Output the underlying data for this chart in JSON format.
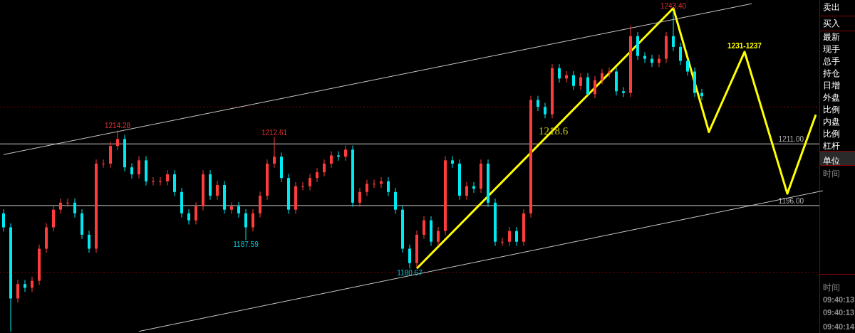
{
  "chart_data": {
    "type": "candlestick",
    "categories": [
      null,
      null,
      null,
      null,
      null,
      null,
      null,
      null,
      null,
      null,
      null,
      null,
      null,
      null,
      null,
      null,
      null,
      null,
      null,
      null,
      null,
      null,
      null,
      null,
      null,
      null,
      null,
      null,
      null,
      null,
      null,
      null,
      null,
      null,
      null,
      null,
      null,
      null,
      null,
      null,
      null,
      null,
      null,
      null,
      null,
      null,
      null,
      null,
      null,
      null,
      null,
      null,
      null,
      null,
      null,
      null,
      null,
      null,
      null,
      null,
      null,
      null,
      null,
      null,
      null,
      null,
      null,
      null,
      null,
      null,
      null,
      null,
      null,
      null,
      null,
      null,
      null,
      null,
      null,
      null,
      null,
      null,
      null,
      null,
      null,
      null,
      null,
      null,
      null,
      null,
      null,
      null,
      null,
      null,
      null,
      null,
      null,
      null,
      null,
      null,
      null,
      null,
      null,
      null,
      null,
      null,
      null,
      null,
      null,
      null,
      null,
      null,
      null,
      null,
      null,
      null,
      null,
      null,
      null,
      null
    ],
    "ohlc": [
      [
        1194.1,
        1195.1,
        1189.7,
        1190.7
      ],
      [
        1190.7,
        1191.7,
        1165.3,
        1173.4
      ],
      [
        1173.4,
        1177.9,
        1172.4,
        1176.9
      ],
      [
        1176.9,
        1177.9,
        1175.0,
        1176.0
      ],
      [
        1176.0,
        1178.7,
        1175.0,
        1177.7
      ],
      [
        1177.7,
        1186.5,
        1176.7,
        1185.5
      ],
      [
        1185.5,
        1191.7,
        1184.5,
        1190.7
      ],
      [
        1190.7,
        1196.0,
        1189.7,
        1195.0
      ],
      [
        1195.0,
        1197.7,
        1194.0,
        1196.7
      ],
      [
        1196.7,
        1197.7,
        1195.7,
        1196.7
      ],
      [
        1196.7,
        1197.7,
        1193.1,
        1194.1
      ],
      [
        1194.1,
        1195.1,
        1187.9,
        1188.9
      ],
      [
        1188.9,
        1189.9,
        1184.5,
        1185.5
      ],
      [
        1185.5,
        1207.2,
        1184.5,
        1206.2
      ],
      [
        1206.2,
        1207.2,
        1205.2,
        1206.2
      ],
      [
        1206.2,
        1211.5,
        1205.2,
        1210.5
      ],
      [
        1210.5,
        1214.28,
        1209.5,
        1212.2
      ],
      [
        1212.2,
        1213.2,
        1204.3,
        1205.3
      ],
      [
        1205.3,
        1206.3,
        1202.6,
        1203.6
      ],
      [
        1203.6,
        1208.0,
        1202.6,
        1207.0
      ],
      [
        1207.0,
        1208.0,
        1200.9,
        1201.9
      ],
      [
        1201.9,
        1202.9,
        1200.9,
        1201.9
      ],
      [
        1201.9,
        1202.9,
        1200.9,
        1201.9
      ],
      [
        1201.9,
        1204.6,
        1200.9,
        1203.6
      ],
      [
        1203.6,
        1204.6,
        1198.3,
        1199.3
      ],
      [
        1199.3,
        1200.3,
        1193.1,
        1194.1
      ],
      [
        1194.1,
        1195.1,
        1191.4,
        1192.4
      ],
      [
        1192.4,
        1196.8,
        1191.4,
        1195.8
      ],
      [
        1195.8,
        1204.6,
        1194.8,
        1203.6
      ],
      [
        1203.6,
        1204.6,
        1197.4,
        1198.4
      ],
      [
        1198.4,
        1202.0,
        1197.4,
        1201.0
      ],
      [
        1201.0,
        1202.0,
        1194.0,
        1195.0
      ],
      [
        1195.0,
        1196.8,
        1194.0,
        1195.8
      ],
      [
        1195.8,
        1196.8,
        1193.1,
        1194.1
      ],
      [
        1194.1,
        1195.1,
        1187.59,
        1190.7
      ],
      [
        1190.7,
        1195.1,
        1189.7,
        1194.1
      ],
      [
        1194.1,
        1199.4,
        1193.1,
        1198.4
      ],
      [
        1198.4,
        1207.2,
        1197.4,
        1206.2
      ],
      [
        1206.2,
        1212.61,
        1205.2,
        1207.9
      ],
      [
        1207.9,
        1208.9,
        1201.7,
        1202.7
      ],
      [
        1202.7,
        1203.7,
        1194.0,
        1195.0
      ],
      [
        1195.0,
        1201.7,
        1194.0,
        1200.7
      ],
      [
        1200.7,
        1201.7,
        1199.7,
        1200.7
      ],
      [
        1200.7,
        1203.7,
        1199.7,
        1202.7
      ],
      [
        1202.7,
        1205.1,
        1201.7,
        1204.1
      ],
      [
        1204.1,
        1207.2,
        1203.1,
        1206.2
      ],
      [
        1206.2,
        1209.2,
        1205.2,
        1208.2
      ],
      [
        1208.2,
        1209.2,
        1206.9,
        1207.9
      ],
      [
        1207.9,
        1210.6,
        1206.9,
        1209.6
      ],
      [
        1209.6,
        1210.6,
        1195.7,
        1196.7
      ],
      [
        1196.7,
        1200.3,
        1195.7,
        1199.3
      ],
      [
        1199.3,
        1202.3,
        1198.3,
        1201.3
      ],
      [
        1201.3,
        1202.3,
        1200.3,
        1201.3
      ],
      [
        1201.3,
        1202.9,
        1200.3,
        1201.9
      ],
      [
        1201.9,
        1202.9,
        1198.3,
        1199.3
      ],
      [
        1199.3,
        1200.3,
        1194.0,
        1195.0
      ],
      [
        1195.0,
        1196.0,
        1184.5,
        1185.5
      ],
      [
        1185.5,
        1186.5,
        1180.67,
        1182.0
      ],
      [
        1182.0,
        1189.9,
        1181.0,
        1188.9
      ],
      [
        1188.9,
        1193.4,
        1187.9,
        1192.4
      ],
      [
        1192.4,
        1193.4,
        1186.2,
        1187.2
      ],
      [
        1187.2,
        1190.8,
        1186.2,
        1189.8
      ],
      [
        1189.8,
        1208.0,
        1188.8,
        1207.0
      ],
      [
        1207.0,
        1208.0,
        1205.2,
        1206.2
      ],
      [
        1206.2,
        1207.2,
        1197.4,
        1198.4
      ],
      [
        1198.4,
        1201.7,
        1197.4,
        1200.7
      ],
      [
        1200.7,
        1201.7,
        1199.1,
        1200.1
      ],
      [
        1200.1,
        1207.2,
        1199.1,
        1206.2
      ],
      [
        1206.2,
        1207.2,
        1195.7,
        1196.7
      ],
      [
        1196.7,
        1197.7,
        1186.2,
        1187.2
      ],
      [
        1187.2,
        1188.2,
        1186.2,
        1187.2
      ],
      [
        1187.2,
        1190.8,
        1186.2,
        1189.8
      ],
      [
        1189.8,
        1190.8,
        1186.2,
        1187.2
      ],
      [
        1187.2,
        1195.1,
        1186.2,
        1194.1
      ],
      [
        1194.1,
        1222.7,
        1193.1,
        1221.7
      ],
      [
        1221.7,
        1222.7,
        1219.0,
        1220.0
      ],
      [
        1220.0,
        1221.0,
        1217.2,
        1218.2
      ],
      [
        1218.2,
        1230.4,
        1217.2,
        1229.4
      ],
      [
        1229.4,
        1230.4,
        1225.9,
        1226.9
      ],
      [
        1226.9,
        1228.7,
        1225.9,
        1227.7
      ],
      [
        1227.7,
        1228.7,
        1224.1,
        1225.1
      ],
      [
        1225.1,
        1228.2,
        1224.1,
        1227.2
      ],
      [
        1227.2,
        1228.2,
        1222.7,
        1223.1
      ],
      [
        1223.1,
        1227.5,
        1222.1,
        1226.5
      ],
      [
        1226.5,
        1229.2,
        1225.5,
        1228.2
      ],
      [
        1228.2,
        1229.6,
        1227.2,
        1228.6
      ],
      [
        1228.6,
        1229.6,
        1222.8,
        1223.8
      ],
      [
        1223.8,
        1224.8,
        1222.4,
        1223.4
      ],
      [
        1223.4,
        1239.8,
        1222.4,
        1237.2
      ],
      [
        1237.2,
        1238.2,
        1231.4,
        1232.4
      ],
      [
        1232.4,
        1233.3,
        1230.7,
        1231.7
      ],
      [
        1231.7,
        1232.7,
        1229.7,
        1230.7
      ],
      [
        1230.7,
        1232.7,
        1229.7,
        1231.7
      ],
      [
        1231.7,
        1238.2,
        1230.7,
        1237.2
      ],
      [
        1237.2,
        1243.4,
        1233.6,
        1234.6
      ],
      [
        1234.6,
        1235.6,
        1230.2,
        1231.2
      ],
      [
        1231.2,
        1231.6,
        1227.6,
        1228.6
      ],
      [
        1228.6,
        1229.6,
        1222.4,
        1223.4
      ],
      [
        1223.4,
        1224.4,
        1221.6,
        1222.6
      ],
      null,
      null,
      null,
      null,
      null,
      null,
      null,
      null,
      null,
      null,
      null,
      null,
      null,
      null,
      null,
      null,
      null,
      null,
      null,
      null,
      null
    ],
    "series": [
      {
        "type": "line",
        "color": "#c8c8c8",
        "values": [
          1208.4,
          null,
          null,
          null,
          null,
          null,
          null,
          null,
          null,
          null,
          null,
          null,
          null,
          null,
          null,
          null,
          null,
          null,
          null,
          null,
          null,
          null,
          null,
          null,
          null,
          null,
          null,
          null,
          null,
          null,
          null,
          null,
          null,
          null,
          null,
          null,
          null,
          null,
          null,
          null,
          null,
          null,
          null,
          null,
          null,
          null,
          null,
          null,
          null,
          null,
          null,
          null,
          null,
          null,
          null,
          null,
          null,
          null,
          null,
          null,
          null,
          null,
          null,
          null,
          null,
          null,
          null,
          null,
          null,
          null,
          null,
          null,
          null,
          null,
          null,
          null,
          null,
          null,
          null,
          null,
          null,
          null,
          null,
          null,
          null,
          null,
          null,
          null,
          null,
          null,
          null,
          null,
          null,
          null,
          null,
          null,
          null,
          null,
          null,
          null,
          null,
          null,
          null,
          null,
          null,
          1245.1,
          null,
          null,
          null,
          null,
          null,
          null,
          null,
          null,
          null,
          null,
          null,
          null,
          null,
          null
        ]
      },
      {
        "type": "line",
        "color": "#c8c8c8",
        "values": [
          null,
          null,
          null,
          null,
          null,
          null,
          null,
          null,
          null,
          null,
          null,
          null,
          null,
          null,
          null,
          null,
          null,
          null,
          null,
          1165.4,
          null,
          null,
          null,
          null,
          null,
          null,
          null,
          null,
          null,
          null,
          null,
          null,
          null,
          null,
          null,
          null,
          null,
          null,
          null,
          null,
          null,
          null,
          null,
          null,
          null,
          null,
          null,
          null,
          null,
          null,
          null,
          null,
          null,
          null,
          null,
          null,
          null,
          null,
          null,
          null,
          null,
          null,
          null,
          null,
          null,
          null,
          null,
          null,
          null,
          null,
          null,
          null,
          null,
          null,
          null,
          null,
          null,
          null,
          null,
          null,
          null,
          null,
          null,
          null,
          null,
          null,
          null,
          null,
          null,
          null,
          null,
          null,
          null,
          null,
          null,
          null,
          null,
          null,
          null,
          null,
          null,
          null,
          null,
          null,
          null,
          null,
          null,
          null,
          null,
          null,
          null,
          null,
          null,
          null,
          null,
          1199.6,
          null,
          null,
          null,
          null
        ]
      },
      {
        "type": "line",
        "color": "#ffff00",
        "values": [
          null,
          null,
          null,
          null,
          null,
          null,
          null,
          null,
          null,
          null,
          null,
          null,
          null,
          null,
          null,
          null,
          null,
          null,
          null,
          null,
          null,
          null,
          null,
          null,
          null,
          null,
          null,
          null,
          null,
          null,
          null,
          null,
          null,
          null,
          null,
          null,
          null,
          null,
          null,
          null,
          null,
          null,
          null,
          null,
          null,
          null,
          null,
          null,
          null,
          null,
          null,
          null,
          null,
          null,
          null,
          null,
          null,
          null,
          1180.7,
          null,
          null,
          null,
          null,
          null,
          null,
          null,
          null,
          null,
          null,
          null,
          null,
          null,
          null,
          null,
          null,
          null,
          null,
          null,
          null,
          null,
          null,
          null,
          null,
          null,
          null,
          null,
          null,
          null,
          null,
          null,
          null,
          null,
          null,
          null,
          1244.0,
          null,
          null,
          null,
          null,
          1213.9,
          null,
          null,
          null,
          null,
          1233.4,
          null,
          null,
          null,
          null,
          null,
          1198.9,
          null,
          null,
          null,
          1218.1,
          null,
          null,
          null,
          null,
          null
        ]
      }
    ],
    "ylim": [
      1165,
      1246
    ],
    "tick_labels": false,
    "grid": false,
    "legend": false,
    "ref_lines": [
      {
        "axis": "y",
        "value": 1211,
        "label": "1211.00",
        "color": "#c8c8c8",
        "line_style": "solid"
      },
      {
        "axis": "y",
        "value": 1196,
        "label": "1196.00",
        "color": "#c8c8c8",
        "line_style": "solid"
      },
      {
        "axis": "y",
        "value": 1220.0,
        "color": "#800000",
        "line_style": "dotted"
      },
      {
        "axis": "y",
        "value": 1179.8,
        "color": "#800000",
        "line_style": "dotted"
      }
    ],
    "annotations": [
      {
        "text": "1214.28",
        "y": 1214.28
      },
      {
        "text": "1212.61",
        "y": 1212.61
      },
      {
        "text": "1187.59",
        "y": 1187.59
      },
      {
        "text": "1180.67",
        "y": 1180.67
      },
      {
        "text": "1243.40",
        "y": 1243.4
      },
      {
        "text": "1231-1237",
        "y": 1233.4
      },
      "1218.6",
      "卖出",
      "买入",
      "最新",
      "现手",
      "总手",
      "持仓",
      "日增",
      "外盘",
      "比例",
      "内盘",
      "比例",
      "杠杆",
      "单位",
      "时间",
      "时间",
      "09:40:13",
      "09:40:13",
      "09:40:14"
    ]
  }
}
